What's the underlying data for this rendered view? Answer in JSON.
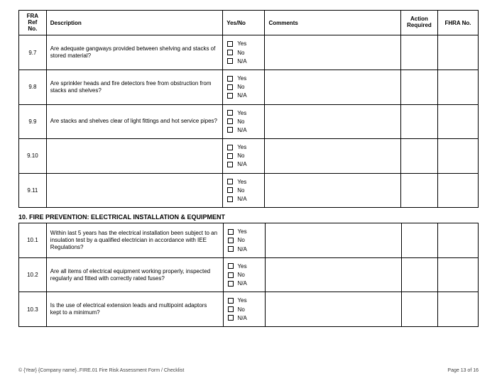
{
  "headers": {
    "ref": "FRA Ref No.",
    "description": "Description",
    "yesno": "Yes/No",
    "comments": "Comments",
    "action": "Action Required",
    "fhra": "FHRA No."
  },
  "options": {
    "yes": "Yes",
    "no": "No",
    "na": "N/A"
  },
  "section1_rows": [
    {
      "ref": "9.7",
      "desc": "Are adequate gangways provided between shelving and stacks of stored material?"
    },
    {
      "ref": "9.8",
      "desc": "Are sprinkler heads and fire detectors free from obstruction from stacks and shelves?"
    },
    {
      "ref": "9.9",
      "desc": "Are stacks and shelves clear of light fittings and hot service pipes?"
    },
    {
      "ref": "9.10",
      "desc": ""
    },
    {
      "ref": "9.11",
      "desc": ""
    }
  ],
  "section2_title": "10. FIRE PREVENTION: ELECTRICAL INSTALLATION & EQUIPMENT",
  "section2_rows": [
    {
      "ref": "10.1",
      "desc": "Within last 5 years has the electrical installation been subject to an insulation test by a qualified electrician in accordance with IEE Regulations?"
    },
    {
      "ref": "10.2",
      "desc": "Are all items of electrical equipment working properly, inspected regularly and fitted with correctly rated fuses?"
    },
    {
      "ref": "10.3",
      "desc": "Is the use of electrical extension leads and multipoint adaptors kept to a minimum?"
    }
  ],
  "footer": {
    "left": "© {Year} {Company name}..FIRE.01 Fire Risk Assessment Form /  Checklist",
    "right": "Page 13 of 16"
  },
  "colors": {
    "border": "#000000",
    "text": "#000000",
    "background": "#ffffff",
    "footer_text": "#444444"
  }
}
